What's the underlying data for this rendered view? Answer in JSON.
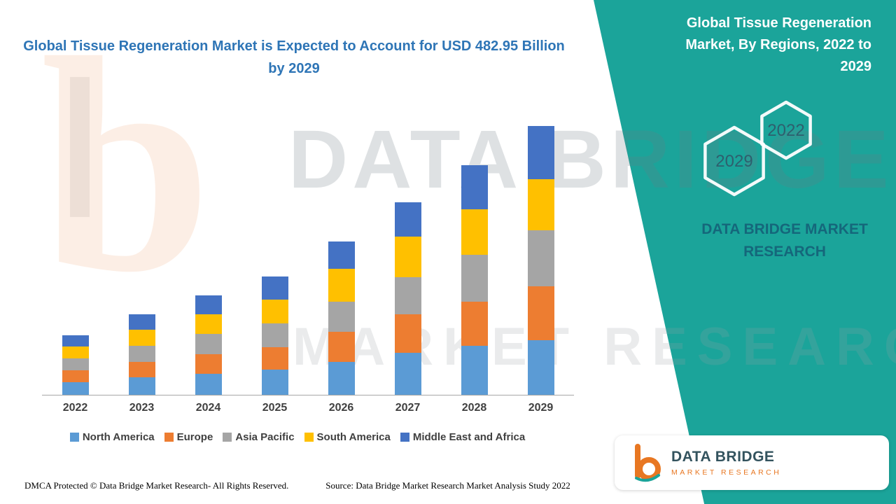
{
  "title": "Global Tissue Regeneration Market is Expected to Account for USD 482.95 Billion by 2029",
  "side_panel": {
    "heading": "Global Tissue Regeneration Market, By Regions, 2022 to 2029",
    "hexagons": [
      "2029",
      "2022"
    ],
    "brand_text": "DATA BRIDGE MARKET RESEARCH",
    "accent_color": "#1BA49A"
  },
  "watermark": {
    "line1": "DATA BRIDGE",
    "line2": "MARKET RESEARCH",
    "letter": "b"
  },
  "chart_data": {
    "type": "bar",
    "stacked": true,
    "title": "Global Tissue Regeneration Market, By Regions, 2022 to 2029 (USD Billion)",
    "xlabel": "",
    "ylabel": "",
    "ylim": [
      0,
      500
    ],
    "grid": false,
    "legend_position": "bottom",
    "categories": [
      "2022",
      "2023",
      "2024",
      "2025",
      "2026",
      "2027",
      "2028",
      "2029"
    ],
    "series": [
      {
        "name": "North America",
        "color": "#5B9BD5",
        "values": [
          23,
          31,
          38,
          45,
          59,
          76,
          88,
          98
        ]
      },
      {
        "name": "Europe",
        "color": "#ED7D31",
        "values": [
          21,
          28,
          35,
          41,
          54,
          69,
          79,
          97
        ]
      },
      {
        "name": "Asia Pacific",
        "color": "#A5A5A5",
        "values": [
          21,
          29,
          36,
          42,
          54,
          66,
          84,
          101
        ]
      },
      {
        "name": "South America",
        "color": "#FFC000",
        "values": [
          22,
          29,
          36,
          43,
          59,
          73,
          82,
          92
        ]
      },
      {
        "name": "Middle East and Africa",
        "color": "#4472C4",
        "values": [
          20,
          28,
          34,
          41,
          50,
          62,
          79,
          95
        ]
      }
    ],
    "totals": [
      107,
      145,
      179,
      212,
      276,
      346,
      412,
      483
    ],
    "highlight_value": "USD 482.95 Billion by 2029"
  },
  "logo": {
    "name": "DATA BRIDGE",
    "subtitle": "MARKET RESEARCH"
  },
  "footer": {
    "dmca": "DMCA Protected © Data Bridge Market Research- All Rights Reserved.",
    "source": "Source: Data Bridge Market Research Market Analysis Study 2022"
  }
}
